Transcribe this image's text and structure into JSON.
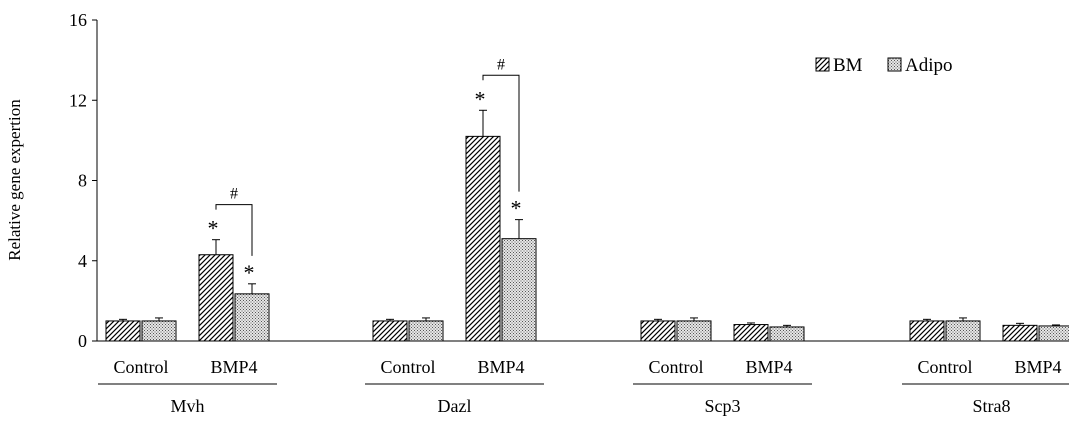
{
  "chart_data": {
    "type": "bar",
    "ylabel": "Relative gene expertion",
    "ylim": [
      0,
      16
    ],
    "yticks": [
      0,
      4,
      8,
      12,
      16
    ],
    "grid": false,
    "legend_position": "top-right",
    "series": [
      {
        "name": "BM",
        "pattern": "diagonal-hatch",
        "stroke": "#000000"
      },
      {
        "name": "Adipo",
        "pattern": "dotted-fill",
        "stroke": "#000000"
      }
    ],
    "groups": [
      {
        "gene": "Mvh",
        "conditions": [
          {
            "label": "Control",
            "values": [
              1.0,
              1.0
            ],
            "errors": [
              0.08,
              0.15
            ],
            "marks": [
              "",
              ""
            ]
          },
          {
            "label": "BMP4",
            "values": [
              4.3,
              2.35
            ],
            "errors": [
              0.75,
              0.5
            ],
            "marks": [
              "*",
              "*"
            ]
          }
        ],
        "bracket": "#"
      },
      {
        "gene": "Dazl",
        "conditions": [
          {
            "label": "Control",
            "values": [
              1.0,
              1.0
            ],
            "errors": [
              0.08,
              0.15
            ],
            "marks": [
              "",
              ""
            ]
          },
          {
            "label": "BMP4",
            "values": [
              10.2,
              5.1
            ],
            "errors": [
              1.3,
              0.95
            ],
            "marks": [
              "*",
              "*"
            ]
          }
        ],
        "bracket": "#"
      },
      {
        "gene": "Scp3",
        "conditions": [
          {
            "label": "Control",
            "values": [
              1.0,
              1.0
            ],
            "errors": [
              0.08,
              0.15
            ],
            "marks": [
              "",
              ""
            ]
          },
          {
            "label": "BMP4",
            "values": [
              0.82,
              0.7
            ],
            "errors": [
              0.08,
              0.08
            ],
            "marks": [
              "",
              ""
            ]
          }
        ],
        "bracket": ""
      },
      {
        "gene": "Stra8",
        "conditions": [
          {
            "label": "Control",
            "values": [
              1.0,
              1.0
            ],
            "errors": [
              0.08,
              0.15
            ],
            "marks": [
              "",
              ""
            ]
          },
          {
            "label": "BMP4",
            "values": [
              0.78,
              0.75
            ],
            "errors": [
              0.1,
              0.05
            ],
            "marks": [
              "",
              ""
            ]
          }
        ],
        "bracket": ""
      }
    ]
  }
}
